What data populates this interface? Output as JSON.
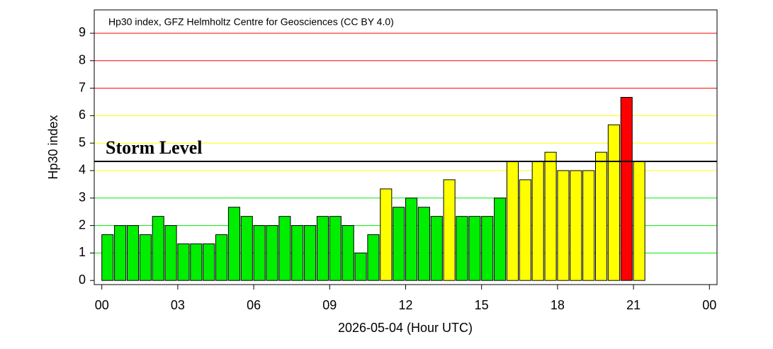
{
  "chart_data": {
    "type": "bar",
    "title": "Hp30 index, GFZ Helmholtz Centre for Geosciences (CC BY 4.0)",
    "x_label": "2026-05-04 (Hour UTC)",
    "y_label": "Hp30 index",
    "x": [
      0,
      0.5,
      1,
      1.5,
      2,
      2.5,
      3,
      3.5,
      4,
      4.5,
      5,
      5.5,
      6,
      6.5,
      7,
      7.5,
      8,
      8.5,
      9,
      9.5,
      10,
      10.5,
      11,
      11.5,
      12,
      12.5,
      13,
      13.5,
      14,
      14.5,
      15,
      15.5,
      16,
      16.5,
      17,
      17.5,
      18,
      18.5,
      19,
      19.5,
      20,
      20.5,
      21
    ],
    "series": [
      {
        "name": "Hp30",
        "values": [
          1.667,
          2,
          2,
          1.667,
          2.333,
          2,
          1.333,
          1.333,
          1.333,
          1.667,
          2.667,
          2.333,
          2,
          2,
          2.333,
          2,
          2,
          2.333,
          2.333,
          2,
          1,
          1.667,
          3.333,
          2.667,
          3,
          2.667,
          2.333,
          3.667,
          2.333,
          2.333,
          2.333,
          3,
          4.333,
          3.667,
          4.333,
          4.667,
          4,
          4,
          4,
          4.667,
          5.667,
          6.667,
          4.333
        ],
        "colors": [
          "#00ee00",
          "#00ee00",
          "#00ee00",
          "#00ee00",
          "#00ee00",
          "#00ee00",
          "#00ee00",
          "#00ee00",
          "#00ee00",
          "#00ee00",
          "#00ee00",
          "#00ee00",
          "#00ee00",
          "#00ee00",
          "#00ee00",
          "#00ee00",
          "#00ee00",
          "#00ee00",
          "#00ee00",
          "#00ee00",
          "#00ee00",
          "#00ee00",
          "#ffff00",
          "#00ee00",
          "#00ee00",
          "#00ee00",
          "#00ee00",
          "#ffff00",
          "#00ee00",
          "#00ee00",
          "#00ee00",
          "#00ee00",
          "#ffff00",
          "#ffff00",
          "#ffff00",
          "#ffff00",
          "#ffff00",
          "#ffff00",
          "#ffff00",
          "#ffff00",
          "#ffff00",
          "#ff0000",
          "#ffff00"
        ]
      }
    ],
    "bar_width": 0.45,
    "xlim": [
      -0.3,
      24.3
    ],
    "xticks": [
      {
        "value": 0,
        "label": "00"
      },
      {
        "value": 3,
        "label": "03"
      },
      {
        "value": 6,
        "label": "06"
      },
      {
        "value": 9,
        "label": "09"
      },
      12,
      15,
      18,
      21,
      {
        "value": 24,
        "label": "00"
      }
    ],
    "ylim": [
      -0.15,
      9.85
    ],
    "yticks": [
      0,
      1,
      2,
      3,
      4,
      5,
      6,
      7,
      8,
      9
    ],
    "grid": true,
    "grid_colors": [
      "#00ee00",
      "#00ee00",
      "#00ee00",
      "#00ee00",
      "#ffff00",
      "#ffff00",
      "#ffff00",
      "#ff0000",
      "#ff0000",
      "#ff0000"
    ],
    "annotations": [
      {
        "text": "Storm Level",
        "y": 4.333
      }
    ]
  }
}
